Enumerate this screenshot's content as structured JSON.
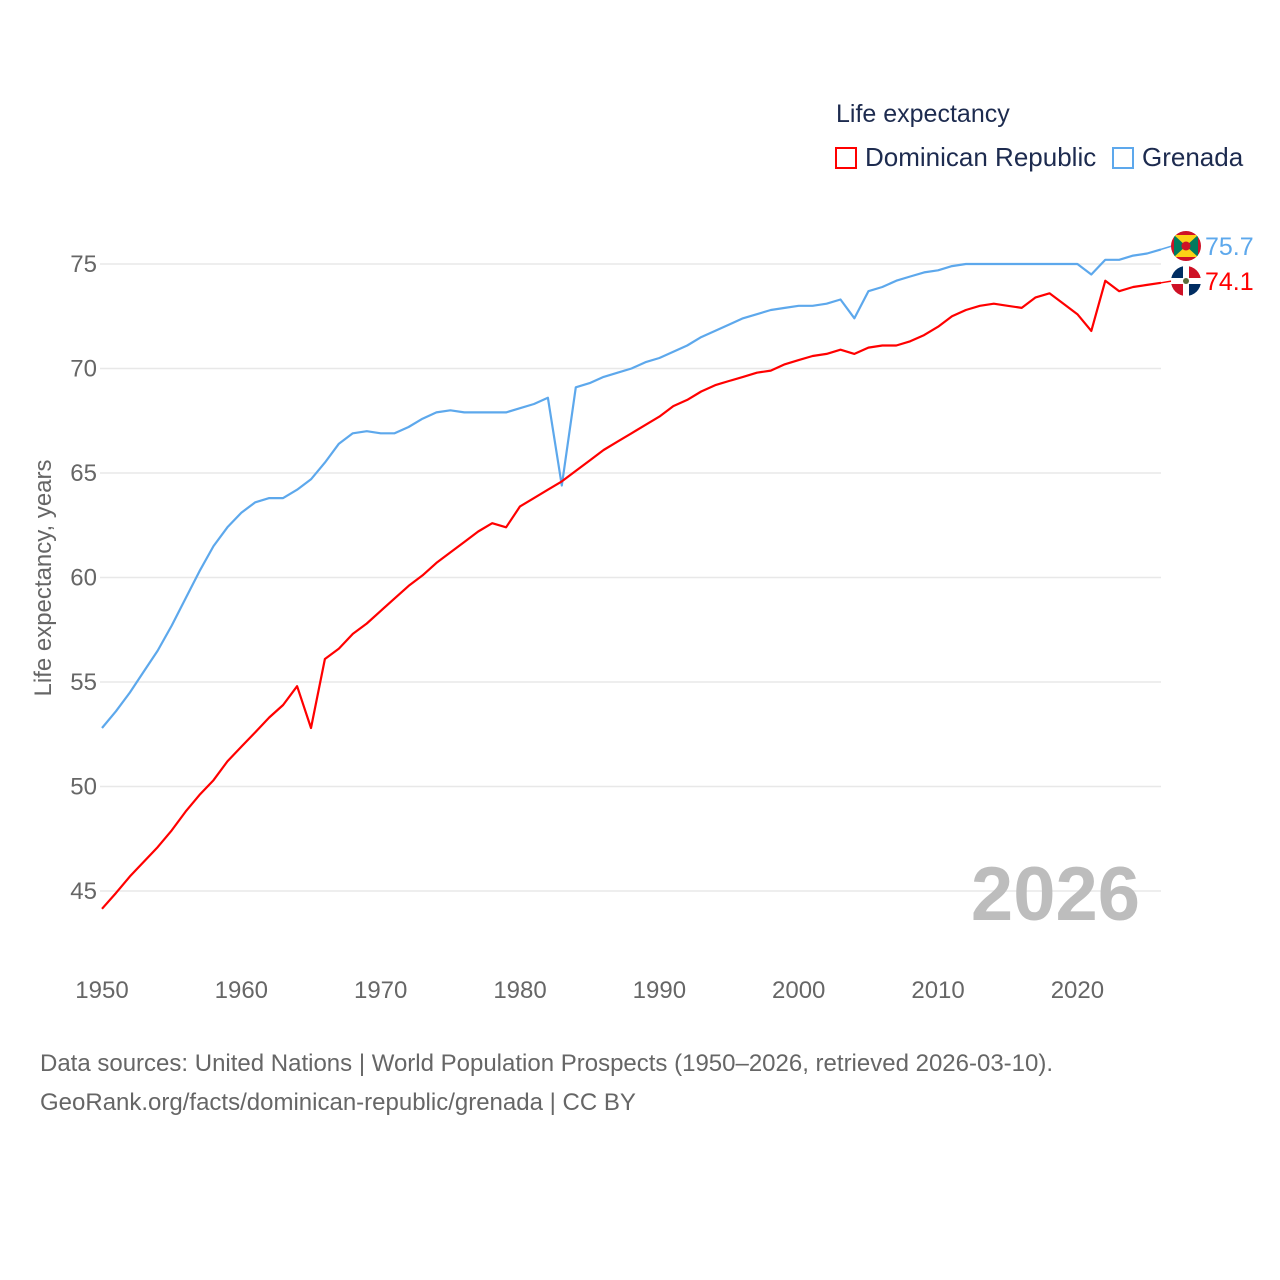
{
  "chart_data": {
    "type": "line",
    "title": "Life expectancy",
    "ylabel": "Life expectancy, years",
    "xlabel": "",
    "xlim": [
      1950,
      2026
    ],
    "ylim": [
      43,
      77
    ],
    "x_ticks": [
      1950,
      1960,
      1970,
      1980,
      1990,
      2000,
      2010,
      2020
    ],
    "y_ticks": [
      45,
      50,
      55,
      60,
      65,
      70,
      75
    ],
    "grid": true,
    "legend_placement": "top-right",
    "year_label": "2026",
    "x": [
      1950,
      1951,
      1952,
      1953,
      1954,
      1955,
      1956,
      1957,
      1958,
      1959,
      1960,
      1961,
      1962,
      1963,
      1964,
      1965,
      1966,
      1967,
      1968,
      1969,
      1970,
      1971,
      1972,
      1973,
      1974,
      1975,
      1976,
      1977,
      1978,
      1979,
      1980,
      1981,
      1982,
      1983,
      1984,
      1985,
      1986,
      1987,
      1988,
      1989,
      1990,
      1991,
      1992,
      1993,
      1994,
      1995,
      1996,
      1997,
      1998,
      1999,
      2000,
      2001,
      2002,
      2003,
      2004,
      2005,
      2006,
      2007,
      2008,
      2009,
      2010,
      2011,
      2012,
      2013,
      2014,
      2015,
      2016,
      2017,
      2018,
      2019,
      2020,
      2021,
      2022,
      2023,
      2024,
      2025,
      2026
    ],
    "series": [
      {
        "name": "Dominican Republic",
        "color": "#ff0000",
        "end_label": "74.1",
        "flag": "dominican-republic",
        "values": [
          44.15,
          44.9,
          45.7,
          46.4,
          47.1,
          47.9,
          48.8,
          49.6,
          50.3,
          51.2,
          51.9,
          52.6,
          53.3,
          53.9,
          54.8,
          52.8,
          56.1,
          56.6,
          57.3,
          57.8,
          58.4,
          59.0,
          59.6,
          60.1,
          60.7,
          61.2,
          61.7,
          62.2,
          62.6,
          62.4,
          63.4,
          63.8,
          64.2,
          64.6,
          65.1,
          65.6,
          66.1,
          66.5,
          66.9,
          67.3,
          67.7,
          68.2,
          68.5,
          68.9,
          69.2,
          69.4,
          69.6,
          69.8,
          69.9,
          70.2,
          70.4,
          70.6,
          70.7,
          70.9,
          70.7,
          71.0,
          71.1,
          71.1,
          71.3,
          71.6,
          72.0,
          72.5,
          72.8,
          73.0,
          73.1,
          73.0,
          72.9,
          73.4,
          73.6,
          73.1,
          72.6,
          71.8,
          74.2,
          73.7,
          73.9,
          74.0,
          74.1
        ]
      },
      {
        "name": "Grenada",
        "color": "#5da8ec",
        "end_label": "75.7",
        "flag": "grenada",
        "values": [
          52.8,
          53.6,
          54.5,
          55.5,
          56.5,
          57.7,
          59.0,
          60.3,
          61.5,
          62.4,
          63.1,
          63.6,
          63.8,
          63.8,
          64.2,
          64.7,
          65.5,
          66.4,
          66.9,
          67.0,
          66.9,
          66.9,
          67.2,
          67.6,
          67.9,
          68.0,
          67.9,
          67.9,
          67.9,
          67.9,
          68.1,
          68.3,
          68.6,
          64.4,
          69.1,
          69.3,
          69.6,
          69.8,
          70.0,
          70.3,
          70.5,
          70.8,
          71.1,
          71.5,
          71.8,
          72.1,
          72.4,
          72.6,
          72.8,
          72.9,
          73.0,
          73.0,
          73.1,
          73.3,
          72.4,
          73.7,
          73.9,
          74.2,
          74.4,
          74.6,
          74.7,
          74.9,
          75.0,
          75.0,
          75.0,
          75.0,
          75.0,
          75.0,
          75.0,
          75.0,
          75.0,
          74.5,
          75.2,
          75.2,
          75.4,
          75.5,
          75.7
        ]
      }
    ]
  },
  "source_line1": "Data sources: United Nations | World Population Prospects (1950–2026, retrieved 2026-03-10).",
  "source_line2": "GeoRank.org/facts/dominican-republic/grenada | CC BY"
}
